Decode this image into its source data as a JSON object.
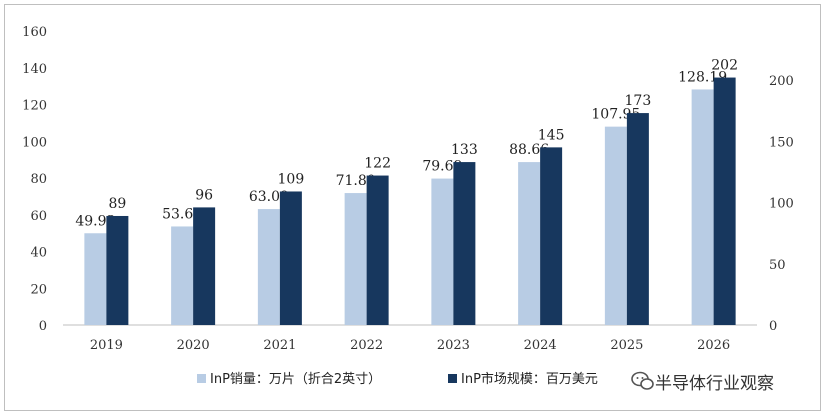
{
  "chart_data": {
    "type": "bar",
    "categories": [
      "2019",
      "2020",
      "2021",
      "2022",
      "2023",
      "2024",
      "2025",
      "2026"
    ],
    "series": [
      {
        "name": "InP销量：万片（折合2英寸）",
        "axis": "left",
        "color": "#b8cce4",
        "values": [
          49.93,
          53.63,
          63.09,
          71.8,
          79.69,
          88.66,
          107.95,
          128.19
        ],
        "labels": [
          "49.93",
          "53.63",
          "63.09",
          "71.80",
          "79.69",
          "88.66",
          "107.95",
          "128.19"
        ]
      },
      {
        "name": "InP市场规模：百万美元",
        "axis": "right",
        "color": "#17375e",
        "values": [
          89,
          96,
          109,
          122,
          133,
          145,
          173,
          202
        ],
        "labels": [
          "89",
          "96",
          "109",
          "122",
          "133",
          "145",
          "173",
          "202"
        ]
      }
    ],
    "y_left": {
      "lim": [
        0,
        160
      ],
      "ticks": [
        "0",
        "20",
        "40",
        "60",
        "80",
        "100",
        "120",
        "140",
        "160"
      ]
    },
    "y_right": {
      "lim": [
        0,
        240
      ],
      "ticks": [
        "0",
        "50",
        "100",
        "150",
        "200"
      ]
    },
    "grid": false,
    "legend_position": "bottom",
    "title": "",
    "xlabel": "",
    "ylabel": ""
  },
  "watermark": {
    "text": "半导体行业观察",
    "icon": "wechat-icon"
  }
}
